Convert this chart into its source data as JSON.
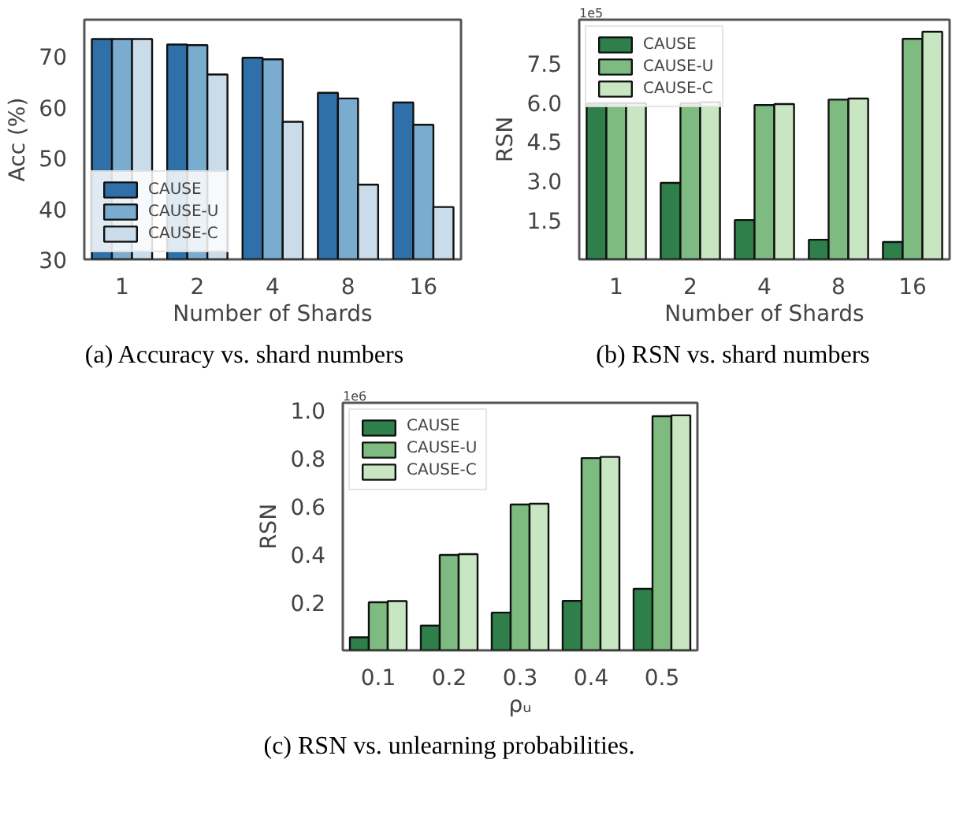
{
  "chart_data": [
    {
      "type": "bar",
      "categories": [
        "1",
        "2",
        "4",
        "8",
        "16"
      ],
      "xlabel": "Number of Shards",
      "ylabel": "Acc (%)",
      "ylim": [
        30,
        77.2
      ],
      "yticks": [
        30,
        40,
        50,
        60,
        70
      ],
      "grid": false,
      "legend": "bottom left",
      "annotations": [
        "(a) Accuracy vs. shard numbers"
      ],
      "series": [
        {
          "name": "CAUSE",
          "color": "#3070a8",
          "values": [
            73.4,
            72.3,
            69.7,
            62.8,
            60.9
          ]
        },
        {
          "name": "CAUSE-U",
          "color": "#7aaccf",
          "values": [
            73.4,
            72.2,
            69.4,
            61.7,
            56.5
          ]
        },
        {
          "name": "CAUSE-C",
          "color": "#cadcea",
          "values": [
            73.4,
            66.4,
            57.1,
            44.7,
            40.3
          ]
        }
      ]
    },
    {
      "type": "bar",
      "categories": [
        "1",
        "2",
        "4",
        "8",
        "16"
      ],
      "xlabel": "Number of Shards",
      "ylabel": "RSN",
      "ylim": [
        0,
        9.15
      ],
      "yticks": [
        1.5,
        {
          "value": 3,
          "label": "3.0"
        },
        4.5,
        {
          "value": 6,
          "label": "6.0"
        },
        7.5
      ],
      "grid": false,
      "legend": "top left",
      "annotations": [
        "1e5",
        "(b) RSN vs. shard numbers"
      ],
      "series": [
        {
          "name": "CAUSE",
          "color": "#2e7f4a",
          "values": [
            5.96,
            2.92,
            1.5,
            0.75,
            0.66
          ]
        },
        {
          "name": "CAUSE-U",
          "color": "#7dbb80",
          "values": [
            5.96,
            5.96,
            5.89,
            6.1,
            8.42
          ]
        },
        {
          "name": "CAUSE-C",
          "color": "#c9e6c3",
          "values": [
            5.96,
            6.0,
            5.93,
            6.14,
            8.69
          ]
        }
      ]
    },
    {
      "type": "bar",
      "categories": [
        "0.1",
        "0.2",
        "0.3",
        "0.4",
        "0.5"
      ],
      "xlabel": "ρᵤ",
      "ylabel": "RSN",
      "ylim": [
        0,
        1.03
      ],
      "yticks": [
        0.2,
        0.4,
        0.6,
        0.8,
        {
          "value": 1,
          "label": "1.0"
        }
      ],
      "grid": false,
      "legend": "top left",
      "annotations": [
        "1e6",
        "(c) RSN vs. unlearning probabilities."
      ],
      "series": [
        {
          "name": "CAUSE",
          "color": "#2e7f4a",
          "values": [
            0.054,
            0.103,
            0.157,
            0.206,
            0.256
          ]
        },
        {
          "name": "CAUSE-U",
          "color": "#7dbb80",
          "values": [
            0.2,
            0.397,
            0.607,
            0.8,
            0.974
          ]
        },
        {
          "name": "CAUSE-C",
          "color": "#c9e6c3",
          "values": [
            0.205,
            0.4,
            0.61,
            0.805,
            0.978
          ]
        }
      ]
    }
  ]
}
